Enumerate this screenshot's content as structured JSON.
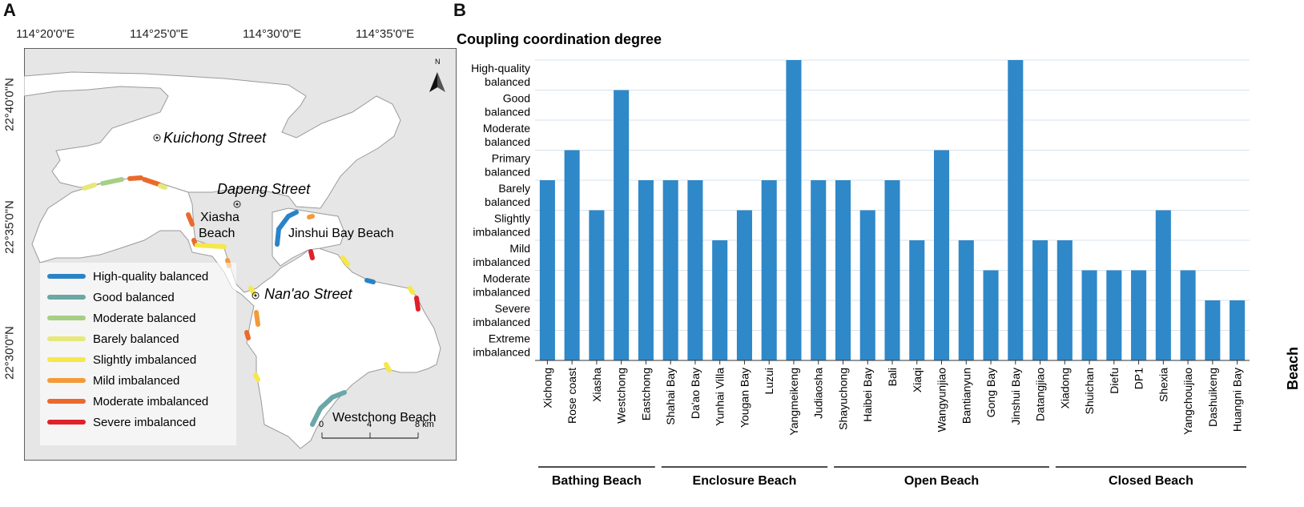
{
  "panels": {
    "a": "A",
    "b": "B"
  },
  "map": {
    "lon_ticks": [
      "114°20'0\"E",
      "114°25'0\"E",
      "114°30'0\"E",
      "114°35'0\"E"
    ],
    "lat_ticks": [
      "22°40'0\"N",
      "22°35'0\"N",
      "22°30'0\"N"
    ],
    "places": {
      "kuichong": "Kuichong Street",
      "dapeng": "Dapeng Street",
      "nanao": "Nan'ao Street"
    },
    "beaches": {
      "xiasha_1": "Xiasha",
      "xiasha_2": "Beach",
      "jinshui": "Jinshui Bay Beach",
      "westchong": "Westchong Beach"
    },
    "north": "N",
    "scale": {
      "s0": "0",
      "s4": "4",
      "s8": "8 km"
    },
    "legend": [
      {
        "label": "High-quality balanced",
        "color": "#2b83c6"
      },
      {
        "label": "Good balanced",
        "color": "#6aa7a6"
      },
      {
        "label": "Moderate balanced",
        "color": "#a6cf86"
      },
      {
        "label": "Barely balanced",
        "color": "#e7e87a"
      },
      {
        "label": "Slightly imbalanced",
        "color": "#f5e84a"
      },
      {
        "label": "Mild imbalanced",
        "color": "#f39a3a"
      },
      {
        "label": "Moderate imbalanced",
        "color": "#ea6a2c"
      },
      {
        "label": "Severe imbalanced",
        "color": "#e0202a"
      }
    ]
  },
  "chart_data": {
    "type": "bar",
    "title": "Coupling coordination degree",
    "xlabel": "Beach",
    "bar_color": "#2f88c8",
    "y_levels": [
      [
        "Extreme",
        "imbalanced"
      ],
      [
        "Severe",
        "imbalanced"
      ],
      [
        "Moderate",
        "imbalanced"
      ],
      [
        "Mild",
        "imbalanced"
      ],
      [
        "Slightly",
        "imbalanced"
      ],
      [
        "Barely",
        "balanced"
      ],
      [
        "Primary",
        "balanced"
      ],
      [
        "Moderate",
        "balanced"
      ],
      [
        "Good",
        "balanced"
      ],
      [
        "High-quality",
        "balanced"
      ]
    ],
    "ylim": [
      0,
      10
    ],
    "categories": [
      "Xichong",
      "Rose coast",
      "Xiasha",
      "Westchong",
      "Eastchong",
      "Shahai Bay",
      "Da'ao Bay",
      "Yunhai Villa",
      "Yougan Bay",
      "Luzui",
      "Yangmeikeng",
      "Judiaosha",
      "Shayuchong",
      "Haibei Bay",
      "Bali",
      "Xiaqi",
      "Wangyunjiao",
      "Bantianyun",
      "Gong Bay",
      "Jinshui Bay",
      "Datangjiao",
      "Xiadong",
      "Shuichan",
      "Diefu",
      "DP1",
      "Shexia",
      "Yangchoujiao",
      "Dashuikeng",
      "Huangni Bay"
    ],
    "values": [
      6,
      7,
      5,
      9,
      6,
      6,
      6,
      4,
      5,
      6,
      10,
      6,
      6,
      5,
      6,
      4,
      7,
      4,
      3,
      10,
      4,
      4,
      3,
      3,
      3,
      5,
      3,
      2,
      2
    ],
    "groups": [
      {
        "name": "Bathing Beach",
        "start": 0,
        "end": 4
      },
      {
        "name": "Enclosure Beach",
        "start": 5,
        "end": 11
      },
      {
        "name": "Open Beach",
        "start": 12,
        "end": 20
      },
      {
        "name": "Closed Beach",
        "start": 21,
        "end": 28
      }
    ],
    "grid": true
  }
}
